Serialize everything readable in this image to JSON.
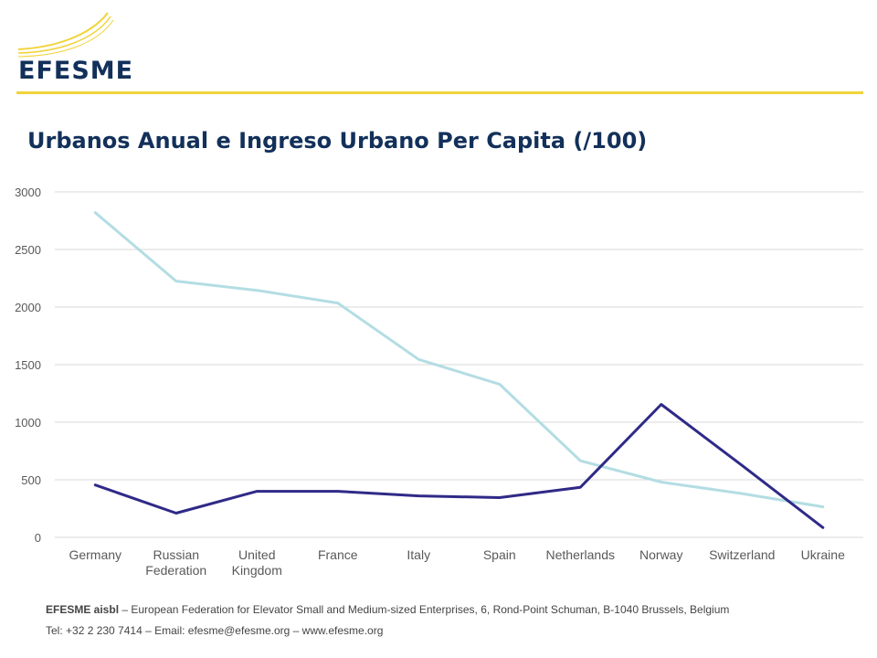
{
  "header": {
    "logo_text": "EFESME"
  },
  "slide": {
    "title": "Urbanos Anual e Ingreso Urbano Per Capita (/100)"
  },
  "chart_data": {
    "type": "line",
    "categories": [
      "Germany",
      "Russian Federation",
      "United Kingdom",
      "France",
      "Italy",
      "Spain",
      "Netherlands",
      "Norway",
      "Switzerland",
      "Ukraine"
    ],
    "category_lines": [
      [
        "Germany"
      ],
      [
        "Russian",
        "Federation"
      ],
      [
        "United",
        "Kingdom"
      ],
      [
        "France"
      ],
      [
        "Italy"
      ],
      [
        "Spain"
      ],
      [
        "Netherlands"
      ],
      [
        "Norway"
      ],
      [
        "Switzerland"
      ],
      [
        "Ukraine"
      ]
    ],
    "series": [
      {
        "values": [
          2820,
          2225,
          2145,
          2035,
          1545,
          1330,
          665,
          480,
          380,
          265
        ],
        "color": "#b3dde3"
      },
      {
        "values": [
          455,
          210,
          400,
          400,
          360,
          345,
          435,
          1155,
          625,
          85
        ],
        "color": "#2f2a87"
      }
    ],
    "ylim": [
      0,
      3000
    ],
    "yticks": [
      0,
      500,
      1000,
      1500,
      2000,
      2500,
      3000
    ],
    "grid": true,
    "legend": "none",
    "xlabel": "",
    "ylabel": ""
  },
  "footer": {
    "org_name": "EFESME aisbl",
    "org_details": " – European Federation for Elevator Small and Medium-sized Enterprises, 6, Rond-Point Schuman, B-1040 Brussels, Belgium",
    "contact": "Tel: +32 2 230 7414 – Email: efesme@efesme.org – www.efesme.org"
  },
  "colors": {
    "brand_navy": "#12305a",
    "brand_yellow": "#f2d33a",
    "grid": "#d9d9d9",
    "tick_text": "#595959"
  }
}
